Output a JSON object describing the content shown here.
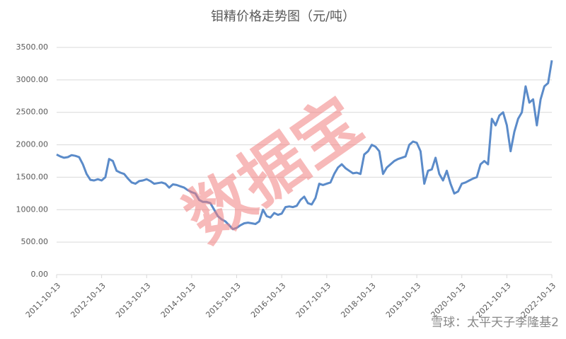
{
  "chart_data": {
    "type": "line",
    "title": "钼精价格走势图（元/吨）",
    "watermark": "数据宝",
    "source": "雪球：太平天子李隆基2",
    "color": "#5b8bc9",
    "grid": true,
    "ylim": [
      0,
      3500
    ],
    "yticks": [
      {
        "value": 0,
        "label": "0.00"
      },
      {
        "value": 500,
        "label": "500.00"
      },
      {
        "value": 1000,
        "label": "1000.00"
      },
      {
        "value": 1500,
        "label": "1500.00"
      },
      {
        "value": 2000,
        "label": "2000.00"
      },
      {
        "value": 2500,
        "label": "2500.00"
      },
      {
        "value": 3000,
        "label": "3000.00"
      },
      {
        "value": 3500,
        "label": "3500.00"
      }
    ],
    "categories": [
      "2011-10-13",
      null,
      null,
      null,
      null,
      null,
      null,
      null,
      null,
      null,
      null,
      null,
      "2012-10-13",
      null,
      null,
      null,
      null,
      null,
      null,
      null,
      null,
      null,
      null,
      null,
      "2013-10-13",
      null,
      null,
      null,
      null,
      null,
      null,
      null,
      null,
      null,
      null,
      null,
      "2014-10-13",
      null,
      null,
      null,
      null,
      null,
      null,
      null,
      null,
      null,
      null,
      null,
      "2015-10-13",
      null,
      null,
      null,
      null,
      null,
      null,
      null,
      null,
      null,
      null,
      null,
      "2016-10-13",
      null,
      null,
      null,
      null,
      null,
      null,
      null,
      null,
      null,
      null,
      null,
      "2017-10-13",
      null,
      null,
      null,
      null,
      null,
      null,
      null,
      null,
      null,
      null,
      null,
      "2018-10-13",
      null,
      null,
      null,
      null,
      null,
      null,
      null,
      null,
      null,
      null,
      null,
      "2019-10-13",
      null,
      null,
      null,
      null,
      null,
      null,
      null,
      null,
      null,
      null,
      null,
      "2020-10-13",
      null,
      null,
      null,
      null,
      null,
      null,
      null,
      null,
      null,
      null,
      null,
      "2021-10-13",
      null,
      null,
      null,
      null,
      null,
      null,
      null,
      null,
      null,
      null,
      null,
      "2022-10-13"
    ],
    "values": [
      1850,
      1820,
      1800,
      1810,
      1840,
      1830,
      1810,
      1700,
      1550,
      1460,
      1450,
      1470,
      1450,
      1500,
      1780,
      1750,
      1600,
      1570,
      1550,
      1480,
      1420,
      1400,
      1440,
      1450,
      1470,
      1440,
      1400,
      1410,
      1420,
      1400,
      1340,
      1390,
      1380,
      1360,
      1340,
      1300,
      1270,
      1250,
      1150,
      1120,
      1120,
      1100,
      1000,
      900,
      850,
      820,
      760,
      700,
      720,
      760,
      790,
      800,
      790,
      780,
      820,
      1000,
      900,
      880,
      950,
      920,
      940,
      1040,
      1050,
      1040,
      1060,
      1150,
      1200,
      1100,
      1080,
      1180,
      1400,
      1380,
      1400,
      1420,
      1550,
      1650,
      1700,
      1640,
      1600,
      1560,
      1570,
      1550,
      1850,
      1900,
      2000,
      1970,
      1900,
      1550,
      1650,
      1700,
      1750,
      1780,
      1800,
      1820,
      2000,
      2050,
      2030,
      1900,
      1400,
      1600,
      1620,
      1800,
      1550,
      1450,
      1600,
      1400,
      1250,
      1280,
      1400,
      1420,
      1450,
      1480,
      1500,
      1700,
      1750,
      1700,
      2400,
      2300,
      2450,
      2500,
      2300,
      1900,
      2200,
      2400,
      2500,
      2900,
      2650,
      2700,
      2300,
      2700,
      2900,
      2950,
      3300
    ]
  }
}
